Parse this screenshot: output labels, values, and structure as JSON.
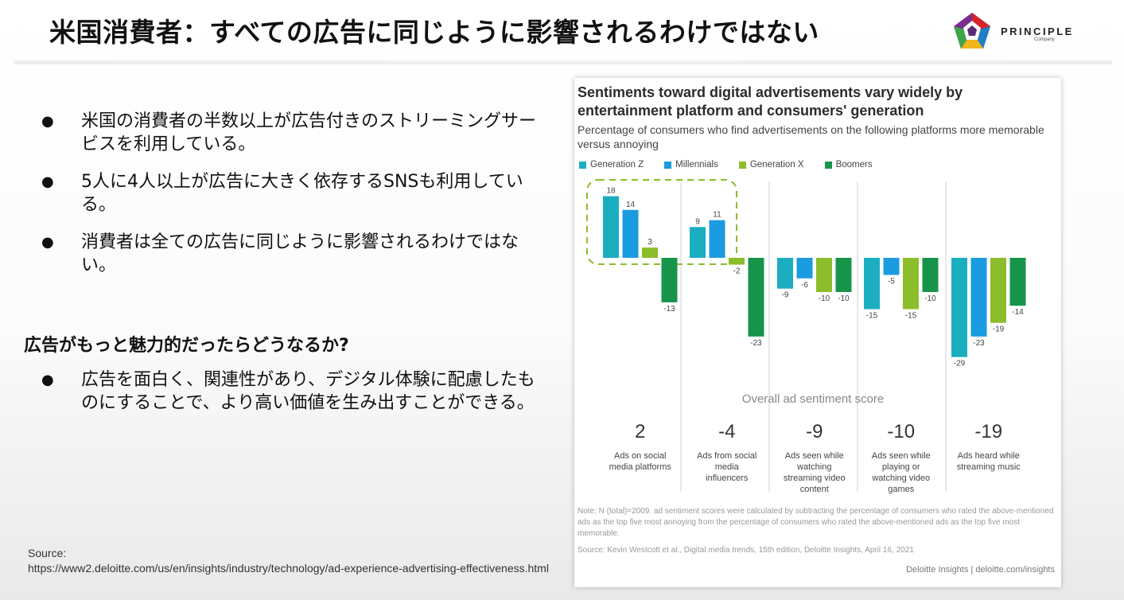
{
  "slide": {
    "title": "米国消費者：すべての広告に同じように影響されるわけではない",
    "logo_text": "PRINCIPLE",
    "logo_sub": "Company"
  },
  "bullets": [
    "米国の消費者の半数以上が広告付きのストリーミングサービスを利用している。",
    "5人に4人以上が広告に大きく依存するSNSも利用している。",
    "消費者は全ての広告に同じように影響されるわけではない。"
  ],
  "subheading": "広告がもっと魅力的だったらどうなるか?",
  "bullets2": [
    "広告を面白く、関連性があり、デジタル体験に配慮したものにすることで、より高い価値を生み出すことができる。"
  ],
  "source": "Source:\nhttps://www2.deloitte.com/us/en/insights/industry/technology/ad-experience-advertising-effectiveness.html",
  "chart_meta": {
    "note": "Note: N (total)=2009. ad sentiment scores were calculated by subtracting the percentage of consumers who rated the above-mentioned ads as the top five most annoying from the percentage of consumers who rated the above-mentioned ads as the top five most memorable.",
    "source": "Source: Kevin Westcott et al., Digital media trends, 15th edition, Deloitte Insights, April 16, 2021",
    "brand": "Deloitte Insights | deloitte.com/insights"
  },
  "chart_data": {
    "type": "bar",
    "title": "Sentiments toward digital advertisements vary widely by entertainment platform and consumers' generation",
    "subtitle": "Percentage of consumers who find advertisements on the following platforms more memorable versus annoying",
    "categories": [
      "Ads on social media platforms",
      "Ads from social media influencers",
      "Ads seen while watching streaming video content",
      "Ads seen while playing or watching video games",
      "Ads heard while streaming music"
    ],
    "series": [
      {
        "name": "Generation Z",
        "color": "#1aaec0",
        "values": [
          18,
          9,
          -9,
          -15,
          -29
        ]
      },
      {
        "name": "Millennials",
        "color": "#1b9be0",
        "values": [
          14,
          11,
          -6,
          -5,
          -23
        ]
      },
      {
        "name": "Generation X",
        "color": "#8cbd2b",
        "values": [
          3,
          -2,
          -10,
          -15,
          -19
        ]
      },
      {
        "name": "Boomers",
        "color": "#16954a",
        "values": [
          -13,
          -23,
          -10,
          -10,
          -14
        ]
      }
    ],
    "overall_label": "Overall ad sentiment score",
    "overall_scores": [
      2,
      -4,
      -9,
      -10,
      -19
    ],
    "ylim": [
      -30,
      20
    ],
    "legend_position": "top-left",
    "grid": false
  }
}
